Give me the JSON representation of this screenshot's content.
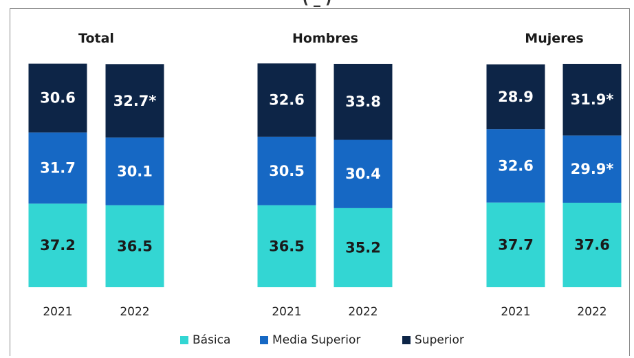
{
  "chart_data": {
    "type": "bar",
    "stacked": true,
    "title_partial": "(  _  )",
    "groups": [
      {
        "title": "Total",
        "years": [
          "2021",
          "2022"
        ]
      },
      {
        "title": "Hombres",
        "years": [
          "2021",
          "2022"
        ]
      },
      {
        "title": "Mujeres",
        "years": [
          "2021",
          "2022"
        ]
      }
    ],
    "series": [
      {
        "name": "Básica",
        "color": "#33d6d3",
        "label_color": "#1a1a1a",
        "values": [
          [
            37.2,
            36.5
          ],
          [
            36.5,
            35.2
          ],
          [
            37.7,
            37.6
          ]
        ],
        "labels": [
          [
            "37.2",
            "36.5"
          ],
          [
            "36.5",
            "35.2"
          ],
          [
            "37.7",
            "37.6"
          ]
        ]
      },
      {
        "name": "Media Superior",
        "color": "#1668c4",
        "label_color": "#ffffff",
        "values": [
          [
            31.7,
            30.1
          ],
          [
            30.5,
            30.4
          ],
          [
            32.6,
            29.9
          ]
        ],
        "labels": [
          [
            "31.7",
            "30.1"
          ],
          [
            "30.5",
            "30.4"
          ],
          [
            "32.6",
            "29.9*"
          ]
        ]
      },
      {
        "name": "Superior",
        "color": "#0d2547",
        "label_color": "#ffffff",
        "values": [
          [
            30.6,
            32.7
          ],
          [
            32.6,
            33.8
          ],
          [
            28.9,
            31.9
          ]
        ],
        "labels": [
          [
            "30.6",
            "32.7*"
          ],
          [
            "32.6",
            "33.8"
          ],
          [
            "28.9",
            "31.9*"
          ]
        ]
      }
    ],
    "ylim": [
      0,
      100
    ],
    "legend_position": "bottom"
  }
}
